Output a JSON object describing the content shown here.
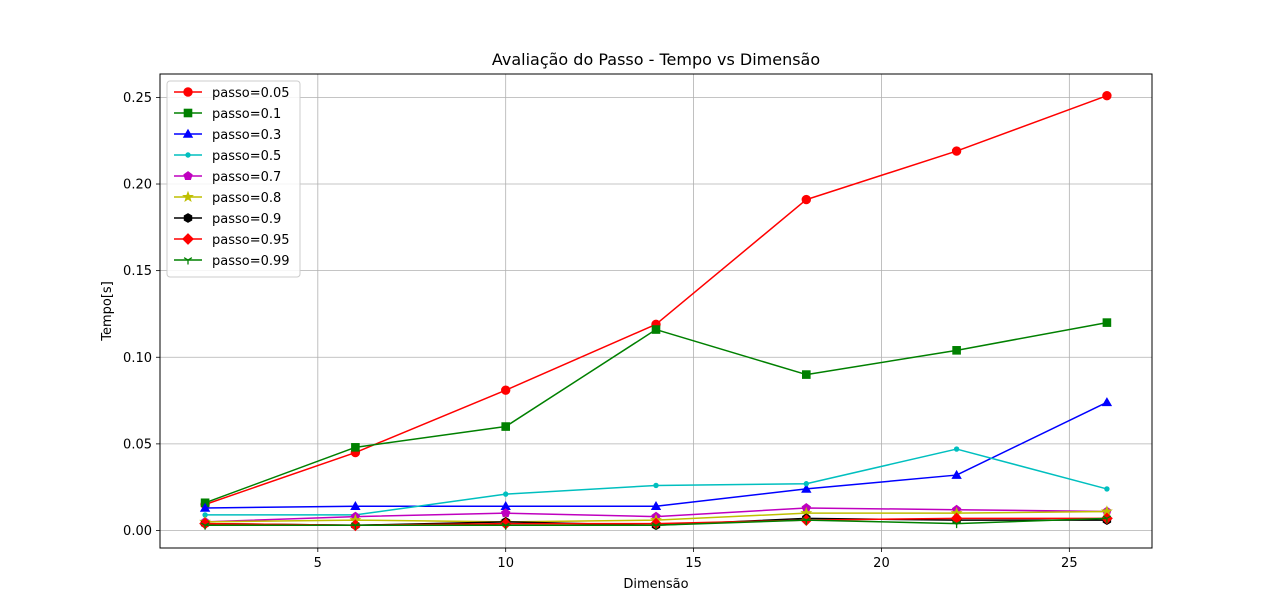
{
  "chart_data": {
    "type": "line",
    "title": "Avaliação do Passo - Tempo vs Dimensão",
    "xlabel": "Dimensão",
    "ylabel": "Tempo[s]",
    "xlim": [
      0.8,
      27.2
    ],
    "ylim": [
      -0.0101,
      0.2635
    ],
    "xticks": [
      {
        "value": 5,
        "label": "5"
      },
      {
        "value": 10,
        "label": "10"
      },
      {
        "value": 15,
        "label": "15"
      },
      {
        "value": 20,
        "label": "20"
      },
      {
        "value": 25,
        "label": "25"
      }
    ],
    "yticks": [
      {
        "value": 0.0,
        "label": "0.00"
      },
      {
        "value": 0.05,
        "label": "0.05"
      },
      {
        "value": 0.1,
        "label": "0.10"
      },
      {
        "value": 0.15,
        "label": "0.15"
      },
      {
        "value": 0.2,
        "label": "0.20"
      },
      {
        "value": 0.25,
        "label": "0.25"
      }
    ],
    "grid": true,
    "legend_position": "top-left",
    "x": [
      2,
      6,
      10,
      14,
      18,
      22,
      26
    ],
    "series": [
      {
        "name": "passo=0.05",
        "color": "#ff0000",
        "marker": "circle",
        "values": [
          0.015,
          0.045,
          0.081,
          0.119,
          0.191,
          0.219,
          0.251
        ]
      },
      {
        "name": "passo=0.1",
        "color": "#008000",
        "marker": "square",
        "values": [
          0.016,
          0.048,
          0.06,
          0.116,
          0.09,
          0.104,
          0.12
        ]
      },
      {
        "name": "passo=0.3",
        "color": "#0000ff",
        "marker": "triangle",
        "values": [
          0.013,
          0.014,
          0.014,
          0.014,
          0.024,
          0.032,
          0.074
        ]
      },
      {
        "name": "passo=0.5",
        "color": "#00bfbf",
        "marker": "point",
        "values": [
          0.009,
          0.009,
          0.021,
          0.026,
          0.027,
          0.047,
          0.024
        ]
      },
      {
        "name": "passo=0.7",
        "color": "#bf00bf",
        "marker": "pentagon",
        "values": [
          0.005,
          0.008,
          0.01,
          0.008,
          0.013,
          0.012,
          0.011
        ]
      },
      {
        "name": "passo=0.8",
        "color": "#bfbf00",
        "marker": "star",
        "values": [
          0.005,
          0.006,
          0.005,
          0.006,
          0.01,
          0.01,
          0.011
        ]
      },
      {
        "name": "passo=0.9",
        "color": "#000000",
        "marker": "hexagon",
        "values": [
          0.004,
          0.003,
          0.005,
          0.003,
          0.007,
          0.006,
          0.006
        ]
      },
      {
        "name": "passo=0.95",
        "color": "#ff0000",
        "marker": "diamond",
        "values": [
          0.004,
          0.003,
          0.004,
          0.004,
          0.006,
          0.007,
          0.007
        ]
      },
      {
        "name": "passo=0.99",
        "color": "#008000",
        "marker": "tri_down",
        "values": [
          0.003,
          0.003,
          0.003,
          0.003,
          0.006,
          0.004,
          0.007
        ]
      }
    ]
  }
}
